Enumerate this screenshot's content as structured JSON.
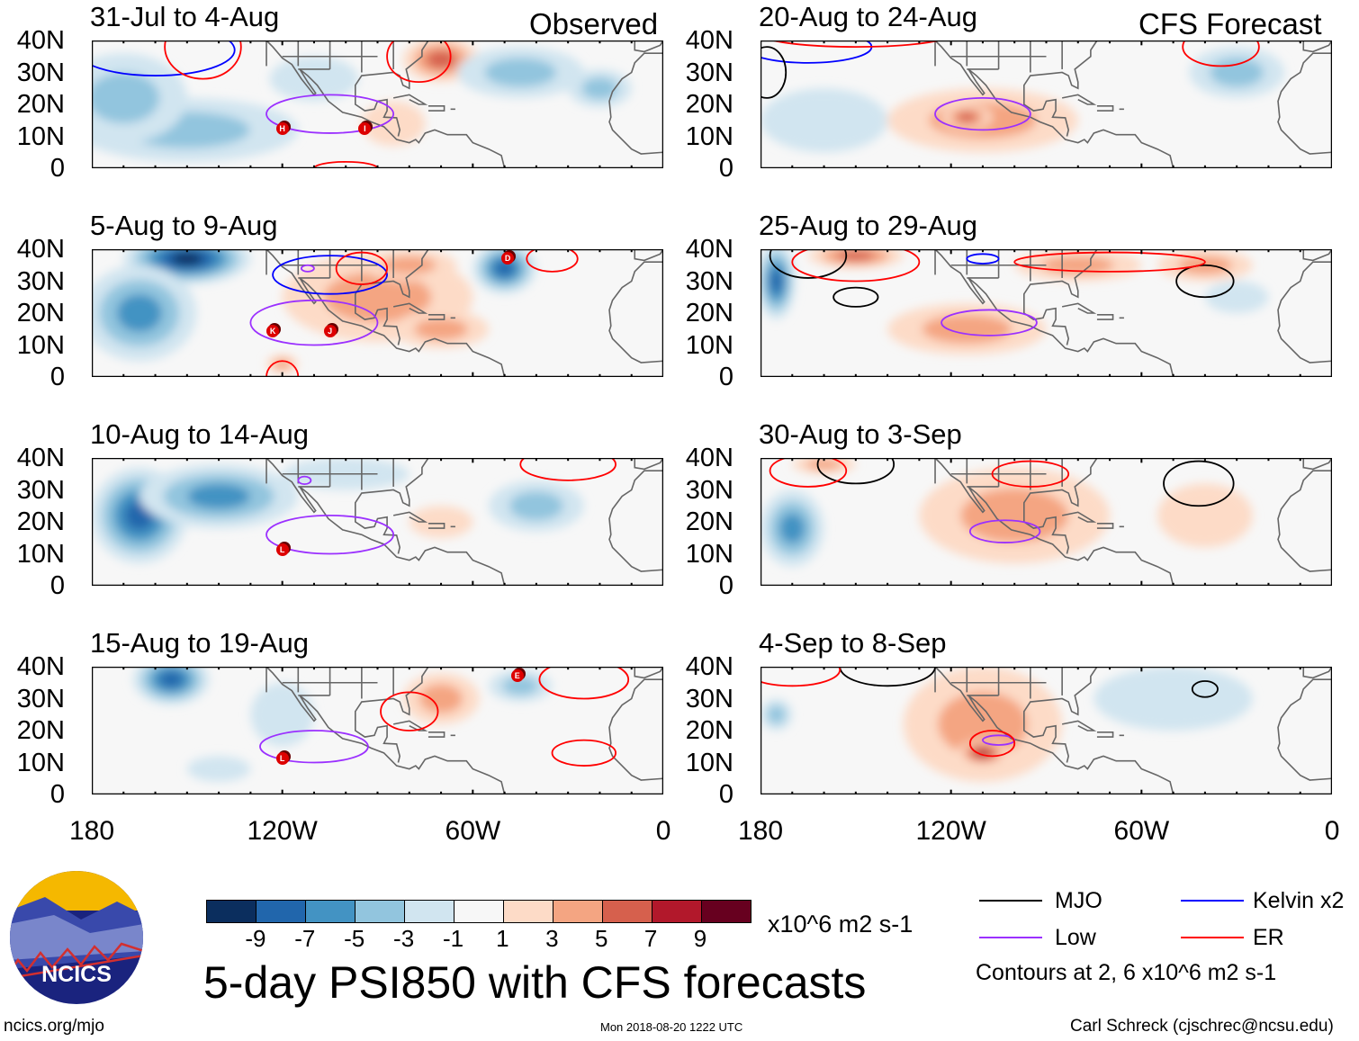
{
  "colors": {
    "scale": [
      "#0b2e5e",
      "#2166ac",
      "#4393c3",
      "#92c5de",
      "#d1e5f0",
      "#f7f7f7",
      "#fddbc7",
      "#f4a582",
      "#d6604d",
      "#b2182b",
      "#67001f"
    ],
    "MJO": "#000000",
    "Kelvin": "#0000ff",
    "Low": "#9b30ff",
    "ER": "#ff0000",
    "land": "#666666"
  },
  "column_labels": {
    "left": "Observed",
    "right": "CFS Forecast"
  },
  "y_ticks": [
    "40N",
    "30N",
    "20N",
    "10N",
    "0"
  ],
  "x_ticks": [
    "180",
    "120W",
    "60W",
    "0"
  ],
  "panels": [
    {
      "title": "31-Jul to 4-Aug",
      "blobs": [
        [
          150,
          12,
          35,
          10,
          -4
        ],
        [
          170,
          22,
          20,
          14,
          -3
        ],
        [
          110,
          28,
          14,
          7,
          -2
        ],
        [
          70,
          34,
          12,
          7,
          5
        ],
        [
          85,
          14,
          10,
          7,
          2
        ],
        [
          45,
          30,
          20,
          8,
          -4
        ],
        [
          20,
          25,
          10,
          6,
          -3
        ]
      ],
      "contours": [
        [
          "Kelvin",
          160,
          37,
          25,
          8
        ],
        [
          "ER",
          145,
          38,
          12,
          10
        ],
        [
          "Low",
          105,
          17,
          20,
          6
        ],
        [
          "ER",
          77,
          35,
          10,
          8
        ],
        [
          "ER",
          100,
          0,
          10,
          2
        ]
      ],
      "storms": [
        [
          "H",
          120,
          12
        ],
        [
          "I",
          94,
          12
        ]
      ]
    },
    {
      "title": "5-Aug to 9-Aug",
      "blobs": [
        [
          150,
          37,
          20,
          8,
          -9
        ],
        [
          165,
          20,
          18,
          15,
          -5
        ],
        [
          50,
          34,
          10,
          8,
          -8
        ],
        [
          90,
          25,
          30,
          14,
          3
        ],
        [
          70,
          15,
          15,
          6,
          4
        ],
        [
          120,
          4,
          5,
          3,
          4
        ],
        [
          80,
          35,
          15,
          5,
          3
        ]
      ],
      "contours": [
        [
          "Kelvin",
          105,
          32,
          18,
          6
        ],
        [
          "Low",
          110,
          17,
          20,
          7
        ],
        [
          "Low",
          112,
          34,
          2,
          1
        ],
        [
          "ER",
          95,
          34,
          8,
          5
        ],
        [
          "ER",
          35,
          37,
          8,
          4
        ],
        [
          "ER",
          120,
          0,
          5,
          5
        ]
      ],
      "storms": [
        [
          "K",
          123,
          14
        ],
        [
          "J",
          105,
          14
        ],
        [
          "D",
          49,
          37
        ]
      ]
    },
    {
      "title": "10-Aug to 14-Aug",
      "blobs": [
        [
          165,
          22,
          15,
          15,
          -8
        ],
        [
          140,
          28,
          25,
          10,
          -5
        ],
        [
          100,
          35,
          20,
          5,
          -2
        ],
        [
          40,
          25,
          15,
          8,
          -3
        ],
        [
          70,
          20,
          10,
          5,
          1
        ]
      ],
      "contours": [
        [
          "Low",
          105,
          16,
          20,
          6
        ],
        [
          "Low",
          113,
          33,
          2,
          1.2
        ],
        [
          "ER",
          30,
          38,
          15,
          5
        ]
      ],
      "storms": [
        [
          "L",
          120,
          11
        ]
      ]
    },
    {
      "title": "15-Aug to 19-Aug",
      "blobs": [
        [
          155,
          36,
          12,
          8,
          -8
        ],
        [
          120,
          25,
          10,
          10,
          -2
        ],
        [
          70,
          30,
          12,
          8,
          3
        ],
        [
          45,
          34,
          10,
          5,
          -4
        ],
        [
          140,
          8,
          10,
          4,
          -1
        ]
      ],
      "contours": [
        [
          "Low",
          110,
          15,
          17,
          5
        ],
        [
          "ER",
          80,
          26,
          9,
          6
        ],
        [
          "ER",
          25,
          36,
          14,
          6
        ],
        [
          "ER",
          25,
          13,
          10,
          4
        ]
      ],
      "storms": [
        [
          "L",
          120,
          11
        ],
        [
          "E",
          46,
          37
        ]
      ]
    },
    {
      "title": "20-Aug to 24-Aug",
      "blobs": [
        [
          110,
          15,
          30,
          10,
          4
        ],
        [
          115,
          16,
          8,
          4,
          6
        ],
        [
          30,
          30,
          15,
          8,
          -4
        ],
        [
          160,
          15,
          20,
          10,
          -2
        ]
      ],
      "contours": [
        [
          "Low",
          110,
          17,
          15,
          5
        ],
        [
          "Kelvin",
          165,
          38,
          20,
          5
        ],
        [
          "MJO",
          178,
          30,
          6,
          8
        ],
        [
          "ER",
          150,
          42,
          30,
          4
        ],
        [
          "ER",
          35,
          38,
          12,
          6
        ]
      ],
      "storms": []
    },
    {
      "title": "25-Aug to 29-Aug",
      "blobs": [
        [
          175,
          30,
          6,
          12,
          -7
        ],
        [
          115,
          15,
          25,
          8,
          4
        ],
        [
          80,
          35,
          20,
          5,
          4
        ],
        [
          40,
          35,
          15,
          5,
          4
        ],
        [
          30,
          25,
          10,
          5,
          -2
        ],
        [
          150,
          38,
          15,
          4,
          5
        ]
      ],
      "contours": [
        [
          "MJO",
          165,
          38,
          12,
          7
        ],
        [
          "MJO",
          150,
          25,
          7,
          3
        ],
        [
          "Low",
          108,
          17,
          15,
          4
        ],
        [
          "MJO",
          40,
          30,
          9,
          5
        ],
        [
          "ER",
          70,
          36,
          30,
          3
        ],
        [
          "ER",
          150,
          36,
          20,
          6
        ],
        [
          "Kelvin",
          110,
          37,
          5,
          1.5
        ]
      ],
      "storms": []
    },
    {
      "title": "30-Aug to 3-Sep",
      "blobs": [
        [
          170,
          18,
          10,
          12,
          -6
        ],
        [
          100,
          22,
          30,
          15,
          3
        ],
        [
          40,
          22,
          15,
          10,
          2
        ],
        [
          160,
          38,
          10,
          3,
          3
        ]
      ],
      "contours": [
        [
          "MJO",
          150,
          38,
          12,
          6
        ],
        [
          "MJO",
          42,
          32,
          11,
          7
        ],
        [
          "Low",
          103,
          17,
          11,
          3.5
        ],
        [
          "ER",
          95,
          35,
          12,
          4
        ],
        [
          "ER",
          165,
          36,
          12,
          5
        ]
      ],
      "storms": []
    },
    {
      "title": "4-Sep to 8-Sep",
      "blobs": [
        [
          110,
          22,
          25,
          18,
          4
        ],
        [
          110,
          13,
          8,
          4,
          7
        ],
        [
          175,
          25,
          5,
          5,
          -3
        ],
        [
          50,
          30,
          25,
          10,
          -2
        ]
      ],
      "contours": [
        [
          "MJO",
          140,
          40,
          15,
          6
        ],
        [
          "MJO",
          40,
          33,
          4,
          2.5
        ],
        [
          "Low",
          105,
          17,
          5,
          1.5
        ],
        [
          "ER",
          107,
          16,
          7,
          4
        ],
        [
          "ER",
          170,
          39,
          15,
          5
        ]
      ],
      "storms": []
    }
  ],
  "colorbar": {
    "labels": [
      "-9",
      "-7",
      "-5",
      "-3",
      "-1",
      "1",
      "3",
      "5",
      "7",
      "9"
    ],
    "units": "x10^6 m2 s-1"
  },
  "title": "5-day PSI850 with CFS forecasts",
  "legend": {
    "mjo": "MJO",
    "kelvin": "Kelvin x2",
    "low": "Low",
    "er": "ER",
    "note": "Contours at 2, 6 x10^6 m2 s-1"
  },
  "logo_text": "NCICS",
  "footer": {
    "url": "ncics.org/mjo",
    "timestamp": "Mon 2018-08-20 1222 UTC",
    "credit": "Carl Schreck (cjschrec@ncsu.edu)"
  }
}
